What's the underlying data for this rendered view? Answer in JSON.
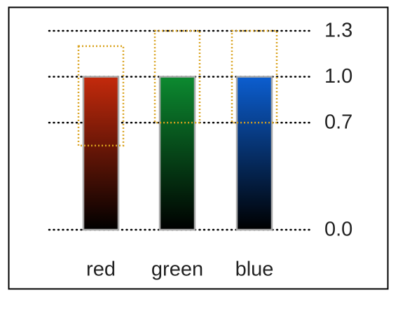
{
  "chart_data": {
    "type": "bar",
    "categories": [
      "red",
      "green",
      "blue"
    ],
    "values": [
      1.0,
      1.0,
      1.0
    ],
    "colors": [
      "#c42a0c",
      "#0c8a30",
      "#0c5ed0"
    ],
    "range_low": [
      0.55,
      0.7,
      0.7
    ],
    "range_high": [
      1.2,
      1.3,
      1.3
    ],
    "range_color": "#d9a21e",
    "ylim": [
      0,
      1.3
    ],
    "yticks": [
      {
        "value": 0,
        "label": "0.0"
      },
      0.7,
      {
        "value": 1,
        "label": "1.0"
      },
      1.3
    ],
    "grid": true
  }
}
